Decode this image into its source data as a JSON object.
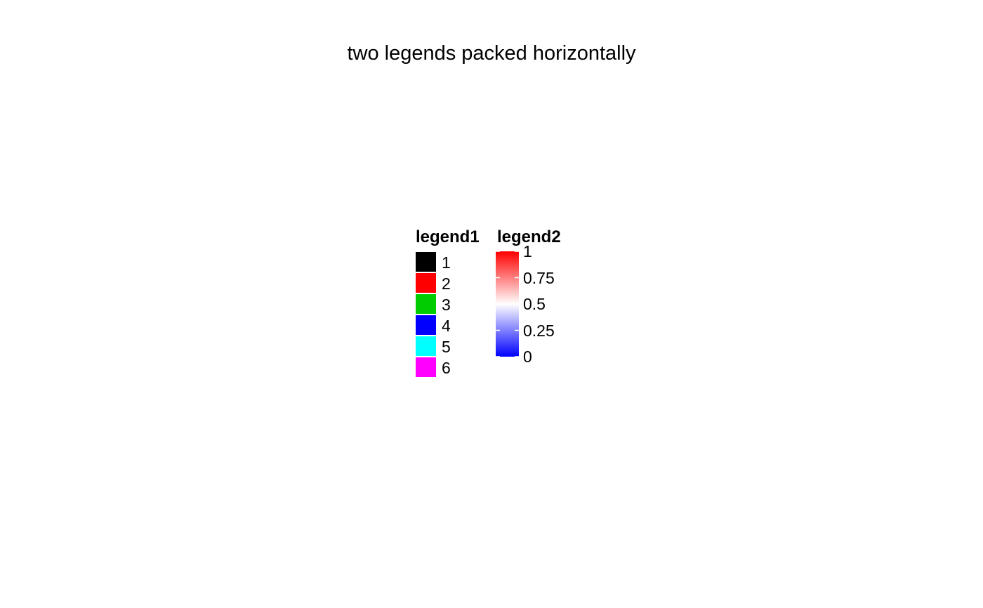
{
  "title": "two legends packed horizontally",
  "legend1": {
    "title": "legend1",
    "items": [
      {
        "label": "1",
        "color": "#000000"
      },
      {
        "label": "2",
        "color": "#ff0000"
      },
      {
        "label": "3",
        "color": "#00cd00"
      },
      {
        "label": "4",
        "color": "#0000ff"
      },
      {
        "label": "5",
        "color": "#00ffff"
      },
      {
        "label": "6",
        "color": "#ff00ff"
      }
    ]
  },
  "legend2": {
    "title": "legend2",
    "type": "continuous",
    "range": [
      0,
      1
    ],
    "color_stops": [
      {
        "value": 0,
        "color": "#0000ff"
      },
      {
        "value": 0.5,
        "color": "#ffffff"
      },
      {
        "value": 1,
        "color": "#ff0000"
      }
    ],
    "ticks": [
      {
        "value": 1,
        "label": "1"
      },
      {
        "value": 0.75,
        "label": "0.75"
      },
      {
        "value": 0.5,
        "label": "0.5"
      },
      {
        "value": 0.25,
        "label": "0.25"
      },
      {
        "value": 0,
        "label": "0"
      }
    ]
  }
}
